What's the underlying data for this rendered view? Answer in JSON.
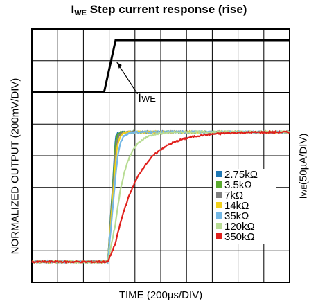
{
  "title": {
    "main": "I",
    "sub": "WE",
    "rest": " Step current response (rise)"
  },
  "xlabel": "TIME (200µs/DIV)",
  "ylabel_left": "NORMALIZED OUTPUT (200mV/DIV)",
  "ylabel_right": {
    "main": "I",
    "sub": "WE",
    "rest": "(50µA/DIV)"
  },
  "annotation": {
    "main": "I",
    "sub": "WE"
  },
  "chart_data": {
    "type": "line",
    "grid": true,
    "divisions": {
      "x": 10,
      "y": 8
    },
    "x_units": "div",
    "y_units": "div",
    "xlim": [
      0,
      10
    ],
    "ylim": [
      0,
      8
    ],
    "legend_position": "lower-right",
    "colors": {
      "iwe": "#000000",
      "2.75kΩ": "#1f77b4",
      "3.5kΩ": "#5aaa2e",
      "7kΩ": "#7f7f7f",
      "14kΩ": "#f2d01a",
      "35kΩ": "#74b8e6",
      "120kΩ": "#b8dc94",
      "350kΩ": "#e0201c"
    },
    "step_current": {
      "name": "IWE",
      "x": [
        0,
        2.8,
        3.25,
        10
      ],
      "y": [
        6.0,
        6.0,
        7.65,
        7.65
      ]
    },
    "series": [
      {
        "name": "2.75kΩ",
        "tau": 0.05
      },
      {
        "name": "3.5kΩ",
        "tau": 0.06
      },
      {
        "name": "7kΩ",
        "tau": 0.08
      },
      {
        "name": "14kΩ",
        "tau": 0.1
      },
      {
        "name": "35kΩ",
        "tau": 0.14
      },
      {
        "name": "120kΩ",
        "tau": 0.42
      },
      {
        "name": "350kΩ",
        "tau": 0.95
      }
    ],
    "response": {
      "t0": 2.95,
      "ramp_end": 3.25,
      "low": 0.65,
      "high": 4.75
    }
  }
}
